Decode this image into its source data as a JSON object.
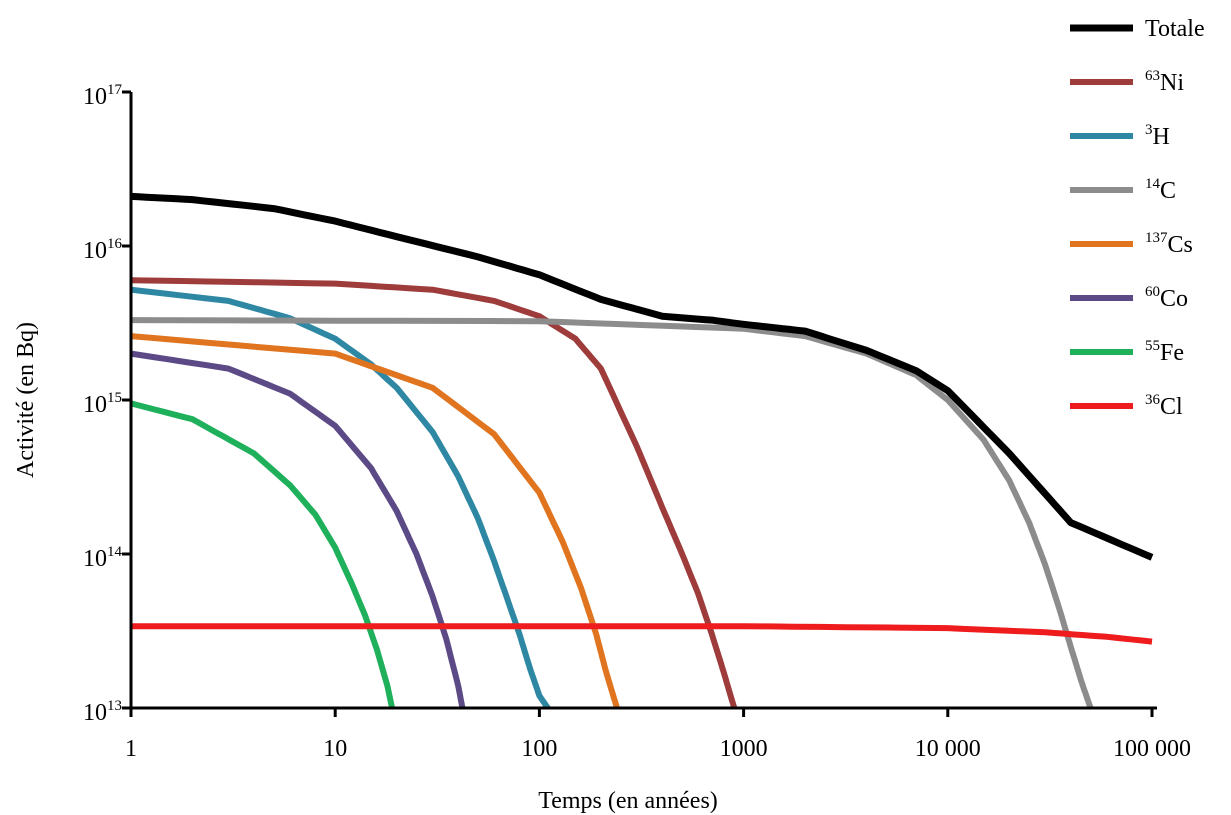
{
  "chart_data": {
    "type": "line",
    "title": "",
    "xlabel": "Temps (en années)",
    "ylabel": "Activité (en Bq)",
    "x_scale": "log",
    "y_scale": "log",
    "xlim": [
      1,
      100000
    ],
    "ylim": [
      10000000000000.0,
      1e+17
    ],
    "grid": false,
    "legend_position": "top-right",
    "x_ticks": [
      {
        "value": 1,
        "label": "1"
      },
      {
        "value": 10,
        "label": "10"
      },
      {
        "value": 100,
        "label": "100"
      },
      {
        "value": 1000,
        "label": "1000"
      },
      {
        "value": 10000,
        "label": "10 000"
      },
      {
        "value": 100000,
        "label": "100 000"
      }
    ],
    "y_ticks": [
      {
        "value": 10000000000000.0,
        "base": "10",
        "exp": "13"
      },
      {
        "value": 100000000000000.0,
        "base": "10",
        "exp": "14"
      },
      {
        "value": 1000000000000000.0,
        "base": "10",
        "exp": "15"
      },
      {
        "value": 1e+16,
        "base": "10",
        "exp": "16"
      },
      {
        "value": 1e+17,
        "base": "10",
        "exp": "17"
      }
    ],
    "series": [
      {
        "name": "Totale",
        "mass": "",
        "element": "Totale",
        "color": "#000000",
        "x": [
          1,
          2,
          5,
          10,
          20,
          50,
          100,
          200,
          400,
          700,
          1000,
          2000,
          4000,
          7000,
          10000,
          20000,
          40000,
          100000
        ],
        "y": [
          2.1e+16,
          2e+16,
          1.75e+16,
          1.45e+16,
          1.15e+16,
          8500000000000000.0,
          6500000000000000.0,
          4500000000000000.0,
          3500000000000000.0,
          3300000000000000.0,
          3100000000000000.0,
          2800000000000000.0,
          2100000000000000.0,
          1550000000000000.0,
          1150000000000000.0,
          450000000000000.0,
          160000000000000.0,
          95000000000000.0
        ]
      },
      {
        "name": "63Ni",
        "mass": "63",
        "element": "Ni",
        "color": "#9e3b3b",
        "x": [
          1,
          10,
          30,
          60,
          100,
          150,
          200,
          300,
          400,
          500,
          600,
          700,
          800,
          900
        ],
        "y": [
          6000000000000000.0,
          5700000000000000.0,
          5200000000000000.0,
          4400000000000000.0,
          3500000000000000.0,
          2500000000000000.0,
          1600000000000000.0,
          500000000000000.0,
          200000000000000.0,
          100000000000000.0,
          55000000000000.0,
          30000000000000.0,
          17000000000000.0,
          10000000000000.0
        ]
      },
      {
        "name": "3H",
        "mass": "3",
        "element": "H",
        "color": "#2f88a3",
        "x": [
          1,
          3,
          6,
          10,
          15,
          20,
          30,
          40,
          50,
          60,
          70,
          80,
          90,
          100,
          110
        ],
        "y": [
          5200000000000000.0,
          4400000000000000.0,
          3400000000000000.0,
          2500000000000000.0,
          1700000000000000.0,
          1200000000000000.0,
          620000000000000.0,
          320000000000000.0,
          170000000000000.0,
          90000000000000.0,
          50000000000000.0,
          30000000000000.0,
          18000000000000.0,
          12000000000000.0,
          10000000000000.0
        ]
      },
      {
        "name": "14C",
        "mass": "14",
        "element": "C",
        "color": "#8c8c8c",
        "x": [
          1,
          100,
          1000,
          2000,
          4000,
          7000,
          10000,
          15000,
          20000,
          25000,
          30000,
          35000,
          40000,
          45000,
          50000
        ],
        "y": [
          3300000000000000.0,
          3250000000000000.0,
          2900000000000000.0,
          2600000000000000.0,
          2000000000000000.0,
          1450000000000000.0,
          1000000000000000.0,
          550000000000000.0,
          300000000000000.0,
          160000000000000.0,
          85000000000000.0,
          45000000000000.0,
          25000000000000.0,
          15000000000000.0,
          10000000000000.0
        ]
      },
      {
        "name": "137Cs",
        "mass": "137",
        "element": "Cs",
        "color": "#e0741f",
        "x": [
          1,
          10,
          30,
          60,
          100,
          130,
          160,
          190,
          210,
          230,
          240
        ],
        "y": [
          2600000000000000.0,
          2000000000000000.0,
          1200000000000000.0,
          600000000000000.0,
          250000000000000.0,
          120000000000000.0,
          60000000000000.0,
          30000000000000.0,
          18000000000000.0,
          12000000000000.0,
          10000000000000.0
        ]
      },
      {
        "name": "60Co",
        "mass": "60",
        "element": "Co",
        "color": "#5b4a86",
        "x": [
          1,
          3,
          6,
          10,
          15,
          20,
          25,
          30,
          35,
          40,
          42
        ],
        "y": [
          2000000000000000.0,
          1600000000000000.0,
          1100000000000000.0,
          680000000000000.0,
          360000000000000.0,
          190000000000000.0,
          100000000000000.0,
          53000000000000.0,
          28000000000000.0,
          14000000000000.0,
          10000000000000.0
        ]
      },
      {
        "name": "55Fe",
        "mass": "55",
        "element": "Fe",
        "color": "#1eb05a",
        "x": [
          1,
          2,
          4,
          6,
          8,
          10,
          12,
          14,
          16,
          18,
          19
        ],
        "y": [
          950000000000000.0,
          750000000000000.0,
          450000000000000.0,
          280000000000000.0,
          180000000000000.0,
          110000000000000.0,
          65000000000000.0,
          40000000000000.0,
          24000000000000.0,
          14000000000000.0,
          10000000000000.0
        ]
      },
      {
        "name": "36Cl",
        "mass": "36",
        "element": "Cl",
        "color": "#ee1c1c",
        "x": [
          1,
          1000,
          10000,
          30000,
          60000,
          100000
        ],
        "y": [
          34000000000000.0,
          34000000000000.0,
          33000000000000.0,
          31000000000000.0,
          29000000000000.0,
          27000000000000.0
        ]
      }
    ]
  }
}
